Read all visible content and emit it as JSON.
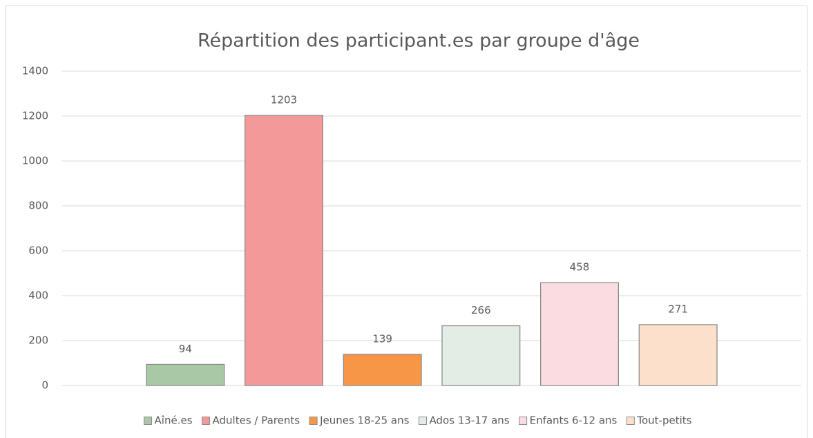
{
  "chart_data": {
    "type": "bar",
    "title": "Répartition des participant.es par groupe d'âge",
    "categories": [
      null
    ],
    "series": [
      {
        "name": "Aîné.es",
        "color": "#a9c8a5",
        "values": [
          94
        ]
      },
      {
        "name": "Adultes / Parents",
        "color": "#f4999a",
        "values": [
          1203
        ]
      },
      {
        "name": "Jeunes 18-25 ans",
        "color": "#f79646",
        "values": [
          139
        ]
      },
      {
        "name": "Ados 13-17 ans",
        "color": "#e3ede6",
        "values": [
          266
        ]
      },
      {
        "name": "Enfants 6-12 ans",
        "color": "#fbdde1",
        "values": [
          458
        ]
      },
      {
        "name": "Tout-petits",
        "color": "#fde0cc",
        "values": [
          271
        ]
      }
    ],
    "ylim": [
      0,
      1400
    ],
    "yticks": [
      0,
      200,
      400,
      600,
      800,
      1000,
      1200,
      1400
    ],
    "grid": true,
    "legend": "bottom"
  }
}
